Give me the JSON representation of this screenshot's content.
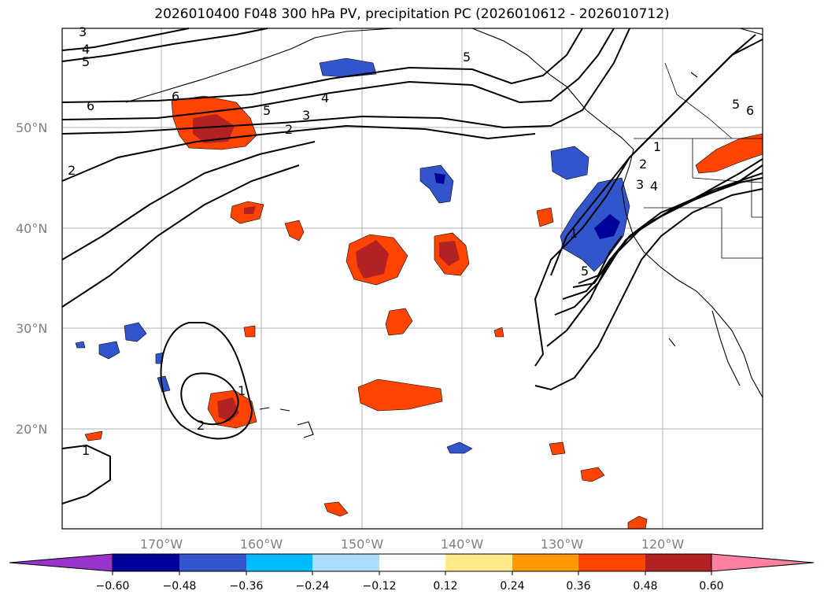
{
  "title": "2026010400 F048 300 hPa PV, precipitation PC (2026010612 - 2026010712)",
  "lat_labels": [
    "50°N",
    "40°N",
    "30°N",
    "20°N"
  ],
  "lon_labels": [
    "170°W",
    "160°W",
    "150°W",
    "140°W",
    "130°W",
    "120°W"
  ],
  "contour_labels": [
    "3",
    "4",
    "5",
    "6",
    "6",
    "5",
    "4",
    "3",
    "2",
    "2",
    "5",
    "5",
    "6",
    "1",
    "2",
    "3",
    "4",
    "1",
    "5",
    "1",
    "2",
    "1"
  ],
  "colorbar": {
    "colors": [
      "#9933cc",
      "#000099",
      "#3355cc",
      "#00bbff",
      "#aaddff",
      "#ffffff",
      "#ffe98a",
      "#ff9900",
      "#ff4400",
      "#b22222",
      "#ff80a0"
    ],
    "tick_labels": [
      "−0.60",
      "−0.48",
      "−0.36",
      "−0.24",
      "−0.12",
      "0.12",
      "0.24",
      "0.36",
      "0.48",
      "0.60"
    ]
  }
}
